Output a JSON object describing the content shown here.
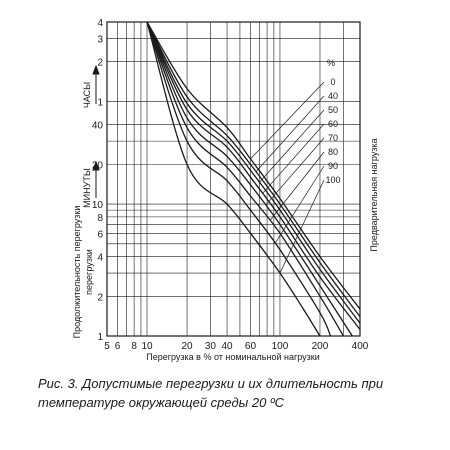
{
  "figure": {
    "caption_line1": "Рис. 3. Допустимые перегрузки и их длительность при",
    "caption_line2": "температуре окружающей среды 20 ºC"
  },
  "chart_data": {
    "type": "line",
    "xlabel": "Перегрузка в % от номинальной нагрузки",
    "ylabel": "Продолжительность перегрузки",
    "ylabel_units_hours": "ЧАСЫ",
    "ylabel_units_minutes": "МИНУТЫ",
    "right_label": "Предварительная нагрузка",
    "legend_title": "%",
    "x_scale": "log",
    "y_scale": "log",
    "xlim": [
      5,
      400
    ],
    "x_ticks": [
      5,
      6,
      8,
      10,
      20,
      30,
      40,
      60,
      100,
      200,
      400
    ],
    "x_tick_labels": [
      "5",
      "6",
      "8",
      "10",
      "20",
      "30",
      "40",
      "60",
      "100",
      "200",
      "400"
    ],
    "y_ticks_minutes": [
      {
        "label": "1",
        "value_min": 1
      },
      {
        "label": "2",
        "value_min": 2
      },
      {
        "label": "4",
        "value_min": 4
      },
      {
        "label": "6",
        "value_min": 6
      },
      {
        "label": "8",
        "value_min": 8
      },
      {
        "label": "10",
        "value_min": 10
      },
      {
        "label": "20",
        "value_min": 20
      },
      {
        "label": "40",
        "value_min": 40
      }
    ],
    "y_ticks_hours": [
      {
        "label": "1",
        "value_min": 60
      },
      {
        "label": "2",
        "value_min": 120
      },
      {
        "label": "3",
        "value_min": 180
      },
      {
        "label": "4",
        "value_min": 240
      }
    ],
    "ylim_minutes": [
      1,
      240
    ],
    "grid": true,
    "series": [
      {
        "name": "0",
        "points": [
          [
            10,
            240
          ],
          [
            20,
            75
          ],
          [
            40,
            38
          ],
          [
            60,
            22
          ],
          [
            100,
            11
          ],
          [
            200,
            4
          ],
          [
            400,
            1.6
          ]
        ]
      },
      {
        "name": "40",
        "points": [
          [
            10,
            240
          ],
          [
            20,
            65
          ],
          [
            40,
            33
          ],
          [
            60,
            20
          ],
          [
            100,
            10
          ],
          [
            200,
            3.6
          ],
          [
            400,
            1.4
          ]
        ]
      },
      {
        "name": "50",
        "points": [
          [
            10,
            240
          ],
          [
            20,
            58
          ],
          [
            40,
            30
          ],
          [
            60,
            18
          ],
          [
            100,
            9
          ],
          [
            200,
            3.2
          ],
          [
            400,
            1.25
          ]
        ]
      },
      {
        "name": "60",
        "points": [
          [
            10,
            240
          ],
          [
            20,
            52
          ],
          [
            40,
            27
          ],
          [
            60,
            16
          ],
          [
            100,
            8
          ],
          [
            200,
            2.8
          ],
          [
            400,
            1.12
          ]
        ]
      },
      {
        "name": "70",
        "points": [
          [
            10,
            240
          ],
          [
            20,
            45
          ],
          [
            40,
            23
          ],
          [
            60,
            14
          ],
          [
            100,
            7
          ],
          [
            200,
            2.4
          ],
          [
            350,
            1
          ]
        ]
      },
      {
        "name": "80",
        "points": [
          [
            10,
            240
          ],
          [
            20,
            38
          ],
          [
            40,
            19
          ],
          [
            60,
            11.5
          ],
          [
            100,
            6
          ],
          [
            200,
            2
          ],
          [
            300,
            1
          ]
        ]
      },
      {
        "name": "90",
        "points": [
          [
            10,
            240
          ],
          [
            20,
            30
          ],
          [
            40,
            15
          ],
          [
            60,
            9
          ],
          [
            100,
            4.5
          ],
          [
            200,
            1.5
          ],
          [
            240,
            1
          ]
        ]
      },
      {
        "name": "100",
        "points": [
          [
            10,
            240
          ],
          [
            20,
            20
          ],
          [
            40,
            10
          ],
          [
            60,
            6
          ],
          [
            100,
            3
          ],
          [
            150,
            1.6
          ],
          [
            200,
            1
          ]
        ]
      }
    ]
  }
}
